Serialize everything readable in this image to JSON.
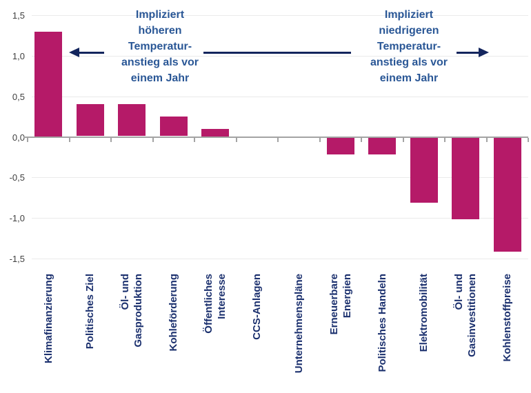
{
  "chart_data": {
    "type": "bar",
    "title": "",
    "xlabel": "",
    "ylabel": "",
    "categories": [
      "Klimafinanzierung",
      "Politisches Ziel",
      "Öl- und\nGasproduktion",
      "Kohleförderung",
      "Öffentliches\nInteresse",
      "CCS-Anlagen",
      "Unternehmenspläne",
      "Erneuerbare\nEnergien",
      "Politisches Handeln",
      "Elektromobilität",
      "Öl- und\nGasinvestitionen",
      "Kohlenstoffpreise"
    ],
    "values": [
      1.3,
      0.4,
      0.4,
      0.25,
      0.1,
      0,
      0,
      -0.2,
      -0.2,
      -0.8,
      -1.0,
      -1.4
    ],
    "ylim": [
      -1.5,
      1.5
    ],
    "ytick_values": [
      1.5,
      1.0,
      0.5,
      0.0,
      -0.5,
      -1.0,
      -1.5
    ],
    "ytick_labels": [
      "1,5",
      "1,0",
      "0,5",
      "0,0",
      "-0,5",
      "-1,0",
      "-1,5"
    ],
    "grid": true,
    "legend": false,
    "annotations": {
      "left": {
        "text": "Impliziert\nhöheren\nTemperatur-\nanstieg als vor\neinem Jahr",
        "arrow_direction": "left"
      },
      "right": {
        "text": "Impliziert\nniedrigeren\nTemperatur-\nanstieg als vor\neinem Jahr",
        "arrow_direction": "right"
      }
    }
  },
  "colors": {
    "bar": "#b51a68",
    "category_label_text": "#1b306e",
    "annotation_text": "#2a5796",
    "arrow": "#13255d",
    "axis": "#a3a3a3",
    "gridline": "#eaeaea",
    "tick_label_text": "#3f3f3f"
  }
}
